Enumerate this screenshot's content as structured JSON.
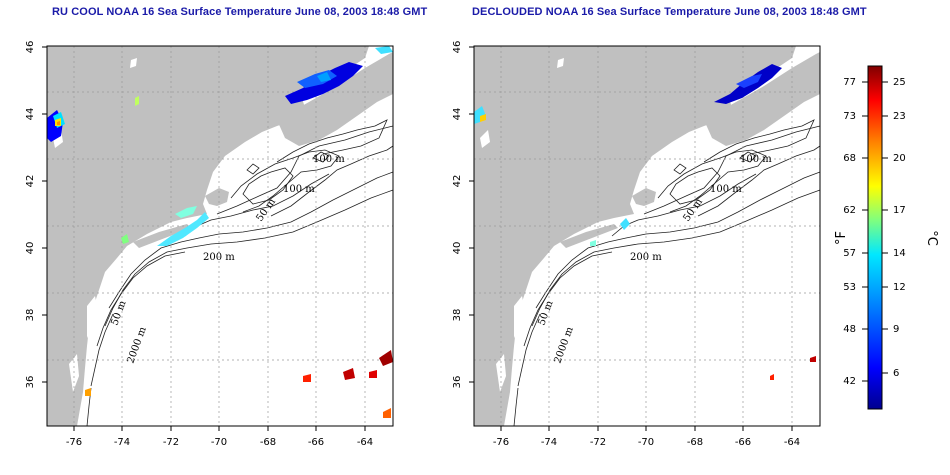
{
  "panels": [
    {
      "title": "RU COOL NOAA 16 Sea Surface Temperature June 08, 2003 18:48 GMT",
      "x_ticks": [
        "-76",
        "-74",
        "-72",
        "-70",
        "-68",
        "-66",
        "-64"
      ],
      "y_ticks": [
        "36",
        "38",
        "40",
        "42",
        "44",
        "46"
      ],
      "contour_labels": [
        "100 m",
        "100 m",
        "50 m",
        "200 m",
        "50 m",
        "2000 m"
      ]
    },
    {
      "title": "DECLOUDED NOAA 16 Sea Surface Temperature June 08, 2003 18:48 GMT",
      "x_ticks": [
        "-76",
        "-74",
        "-72",
        "-70",
        "-68",
        "-66",
        "-64"
      ],
      "y_ticks": [
        "36",
        "38",
        "40",
        "42",
        "44",
        "46"
      ],
      "contour_labels": [
        "100 m",
        "100 m",
        "50 m",
        "200 m",
        "50 m",
        "2000 m"
      ]
    }
  ],
  "colorbar": {
    "fahrenheit_ticks": [
      "77",
      "73",
      "68",
      "62",
      "57",
      "53",
      "48",
      "42"
    ],
    "celsius_ticks": [
      "25",
      "23",
      "20",
      "17",
      "14",
      "12",
      "9",
      "6"
    ],
    "fahrenheit_label": "°F",
    "celsius_label": "°C"
  },
  "colors": {
    "land": "#c0c0c0",
    "ocean": "#ffffff",
    "title": "#1a1aa8",
    "grid": "#9a9a9a"
  }
}
